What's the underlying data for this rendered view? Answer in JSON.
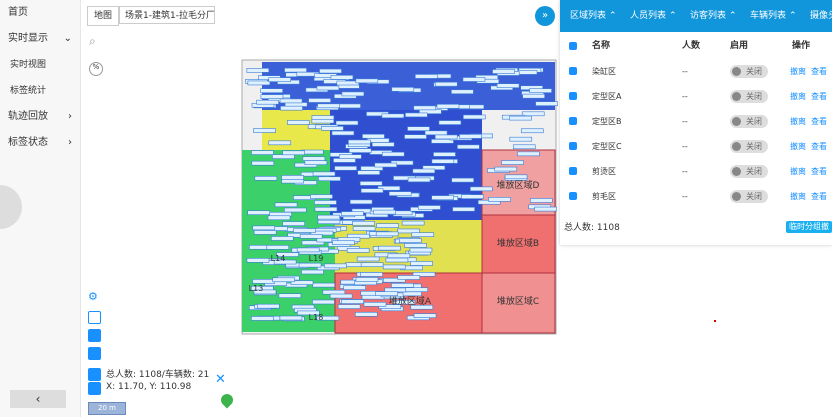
{
  "sidebar": {
    "menu": [
      {
        "label": "首页"
      },
      {
        "label": "实时显示",
        "children": [
          "实时视图",
          "标签统计"
        ]
      },
      {
        "label": "轨迹回放"
      },
      {
        "label": "标签状态"
      }
    ]
  },
  "toolbar": {
    "map_button": "地图",
    "scene": "场景1-建筑1-拉毛分厂"
  },
  "map": {
    "zones": [
      "堆放区域D",
      "堆放区域B",
      "堆放区域A",
      "堆放区域C",
      "L14",
      "L19",
      "L13",
      "L18"
    ]
  },
  "status": {
    "counts": "总人数: 1108/车辆数: 21",
    "coords": "X: 11.70, Y: 110.98",
    "scale": "20 m"
  },
  "panel": {
    "tabs": [
      "区域列表",
      "人员列表",
      "访客列表",
      "车辆列表",
      "摄像头列"
    ],
    "columns": [
      "名称",
      "人数",
      "启用",
      "操作"
    ],
    "rows": [
      [
        "染缸区",
        "--",
        "关闭",
        "撤离",
        "查看"
      ],
      [
        "定型区A",
        "--",
        "关闭",
        "撤离",
        "查看"
      ],
      [
        "定型区B",
        "--",
        "关闭",
        "撤离",
        "查看"
      ],
      [
        "定型区C",
        "--",
        "关闭",
        "撤离",
        "查看"
      ],
      [
        "剪烫区",
        "--",
        "关闭",
        "撤离",
        "查看"
      ],
      [
        "剪毛区",
        "--",
        "关闭",
        "撤离",
        "查看"
      ]
    ],
    "total": "总人数: 1108",
    "group_button": "临时分组撤"
  }
}
